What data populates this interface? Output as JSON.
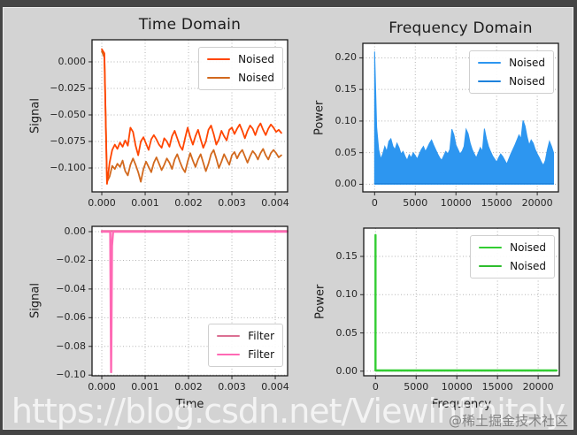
{
  "window": {
    "frame_color": "#454545",
    "figure_background": "#d3d3d3",
    "axes_background": "#ffffff",
    "grid_color": "#b5b5b5"
  },
  "watermark": {
    "url_text": "https://blog.csdn.net/Viewinfinitely",
    "badge_text": "@稀土掘金技术社区"
  },
  "chart_data": [
    {
      "type": "line",
      "title": "Time Domain",
      "xlabel": "",
      "ylabel": "Signal",
      "xlim": [
        -0.000225,
        0.004285
      ],
      "ylim": [
        -0.1225,
        0.0208
      ],
      "grid": true,
      "xticks": {
        "values": [
          0,
          0.001,
          0.002,
          0.003,
          0.004
        ],
        "labels": [
          "0.000",
          "0.001",
          "0.002",
          "0.003",
          "0.004"
        ]
      },
      "yticks": {
        "values": [
          0,
          -0.025,
          -0.05,
          -0.075,
          -0.1
        ],
        "labels": [
          "0.000",
          "−0.025",
          "−0.050",
          "−0.075",
          "−0.100"
        ]
      },
      "legend": {
        "loc": "top-right",
        "items": [
          {
            "label": "Noised",
            "color": "#FF4500"
          },
          {
            "label": "Noised",
            "color": "#D2691E"
          }
        ]
      },
      "series": [
        {
          "name": "Noised",
          "color": "#D2691E",
          "width": 1.8,
          "x0": 0,
          "dx": 6e-05,
          "y": [
            0.01,
            0.004,
            -0.113,
            -0.108,
            -0.098,
            -0.101,
            -0.096,
            -0.099,
            -0.093,
            -0.103,
            -0.107,
            -0.097,
            -0.091,
            -0.097,
            -0.104,
            -0.113,
            -0.101,
            -0.094,
            -0.099,
            -0.104,
            -0.095,
            -0.09,
            -0.096,
            -0.102,
            -0.097,
            -0.091,
            -0.095,
            -0.101,
            -0.092,
            -0.087,
            -0.094,
            -0.1,
            -0.104,
            -0.094,
            -0.086,
            -0.093,
            -0.099,
            -0.092,
            -0.087,
            -0.095,
            -0.103,
            -0.096,
            -0.087,
            -0.083,
            -0.091,
            -0.1,
            -0.094,
            -0.087,
            -0.092,
            -0.097,
            -0.088,
            -0.085,
            -0.091,
            -0.086,
            -0.083,
            -0.089,
            -0.095,
            -0.089,
            -0.084,
            -0.087,
            -0.092,
            -0.086,
            -0.082,
            -0.088,
            -0.092,
            -0.086,
            -0.083,
            -0.086,
            -0.09,
            -0.088
          ]
        },
        {
          "name": "Noised",
          "color": "#FF4500",
          "width": 1.8,
          "x0": 0,
          "dx": 6e-05,
          "y": [
            0.012,
            0.008,
            -0.115,
            -0.095,
            -0.083,
            -0.078,
            -0.082,
            -0.076,
            -0.08,
            -0.074,
            -0.079,
            -0.062,
            -0.066,
            -0.079,
            -0.088,
            -0.075,
            -0.071,
            -0.077,
            -0.083,
            -0.073,
            -0.069,
            -0.073,
            -0.078,
            -0.081,
            -0.072,
            -0.075,
            -0.08,
            -0.07,
            -0.065,
            -0.072,
            -0.079,
            -0.083,
            -0.072,
            -0.062,
            -0.071,
            -0.078,
            -0.07,
            -0.064,
            -0.073,
            -0.081,
            -0.075,
            -0.064,
            -0.06,
            -0.068,
            -0.078,
            -0.073,
            -0.065,
            -0.07,
            -0.074,
            -0.064,
            -0.062,
            -0.068,
            -0.063,
            -0.059,
            -0.065,
            -0.072,
            -0.065,
            -0.06,
            -0.063,
            -0.069,
            -0.062,
            -0.058,
            -0.064,
            -0.069,
            -0.063,
            -0.059,
            -0.062,
            -0.066,
            -0.064,
            -0.067
          ]
        }
      ]
    },
    {
      "type": "area",
      "title": "Frequency Domain",
      "xlabel": "",
      "ylabel": "Power",
      "xlim": [
        -1450,
        22600
      ],
      "ylim": [
        -0.012,
        0.223
      ],
      "grid": true,
      "xticks": {
        "values": [
          0,
          5000,
          10000,
          15000,
          20000
        ],
        "labels": [
          "0",
          "5000",
          "10000",
          "15000",
          "20000"
        ]
      },
      "yticks": {
        "values": [
          0,
          0.05,
          0.1,
          0.15,
          0.2
        ],
        "labels": [
          "0.00",
          "0.05",
          "0.10",
          "0.15",
          "0.20"
        ]
      },
      "legend": {
        "loc": "top-right",
        "items": [
          {
            "label": "Noised",
            "color": "#2D96F0"
          },
          {
            "label": "Noised",
            "color": "#1E82DC"
          }
        ]
      },
      "series": [
        {
          "name": "Noised",
          "color": "#2D96F0",
          "width": 1,
          "fill": true,
          "x0": 0,
          "dx": 250,
          "y": [
            0.21,
            0.09,
            0.055,
            0.04,
            0.048,
            0.06,
            0.052,
            0.068,
            0.072,
            0.06,
            0.055,
            0.065,
            0.058,
            0.048,
            0.052,
            0.044,
            0.038,
            0.047,
            0.042,
            0.05,
            0.045,
            0.04,
            0.048,
            0.055,
            0.06,
            0.052,
            0.058,
            0.065,
            0.07,
            0.062,
            0.055,
            0.048,
            0.042,
            0.038,
            0.045,
            0.052,
            0.048,
            0.055,
            0.087,
            0.078,
            0.062,
            0.055,
            0.048,
            0.052,
            0.06,
            0.087,
            0.08,
            0.065,
            0.055,
            0.048,
            0.042,
            0.05,
            0.058,
            0.052,
            0.088,
            0.072,
            0.06,
            0.052,
            0.045,
            0.04,
            0.035,
            0.042,
            0.048,
            0.044,
            0.038,
            0.032,
            0.04,
            0.048,
            0.055,
            0.062,
            0.07,
            0.078,
            0.072,
            0.101,
            0.092,
            0.075,
            0.062,
            0.07,
            0.065,
            0.055,
            0.048,
            0.042,
            0.035,
            0.03,
            0.038,
            0.055,
            0.068,
            0.06,
            0.05
          ]
        },
        {
          "name": "Noised",
          "color": "#1E82DC",
          "width": 1.2,
          "x": [
            0,
            22000
          ],
          "y": [
            0.0012,
            0.0012
          ]
        }
      ]
    },
    {
      "type": "line",
      "title": "",
      "xlabel": "Time",
      "ylabel": "Signal",
      "xlim": [
        -0.000225,
        0.004285
      ],
      "ylim": [
        -0.1005,
        0.0037
      ],
      "grid": true,
      "xticks": {
        "values": [
          0,
          0.001,
          0.002,
          0.003,
          0.004
        ],
        "labels": [
          "0.000",
          "0.001",
          "0.002",
          "0.003",
          "0.004"
        ]
      },
      "yticks": {
        "values": [
          0,
          -0.02,
          -0.04,
          -0.06,
          -0.08,
          -0.1
        ],
        "labels": [
          "0.00",
          "−0.02",
          "−0.04",
          "−0.06",
          "−0.08",
          "−0.10"
        ]
      },
      "legend": {
        "loc": "bottom-right",
        "items": [
          {
            "label": "Filter",
            "color": "#DB7093"
          },
          {
            "label": "Filter",
            "color": "#FF69B4"
          }
        ]
      },
      "series": [
        {
          "name": "Filter",
          "color": "#DB7093",
          "width": 2.2,
          "x": [
            0,
            0.00428
          ],
          "y": [
            0.0004,
            0.0004
          ]
        },
        {
          "name": "Filter",
          "color": "#FF69B4",
          "width": 2.4,
          "x": [
            0,
            0.000195,
            0.000215,
            0.000235,
            0.00026,
            0.00428
          ],
          "y": [
            0,
            0,
            -0.098,
            -0.01,
            0,
            0
          ]
        }
      ]
    },
    {
      "type": "line",
      "title": "",
      "xlabel": "Frequency",
      "ylabel": "Power",
      "xlim": [
        -1450,
        22600
      ],
      "ylim": [
        -0.006,
        0.187
      ],
      "grid": true,
      "xticks": {
        "values": [
          0,
          5000,
          10000,
          15000,
          20000
        ],
        "labels": [
          "0",
          "5000",
          "10000",
          "15000",
          "20000"
        ]
      },
      "yticks": {
        "values": [
          0,
          0.05,
          0.1,
          0.15
        ],
        "labels": [
          "0.00",
          "0.05",
          "0.10",
          "0.15"
        ]
      },
      "legend": {
        "loc": "top-right",
        "items": [
          {
            "label": "Noised",
            "color": "#32CD32"
          },
          {
            "label": "Noised",
            "color": "#2EBD2E"
          }
        ]
      },
      "series": [
        {
          "name": "Noised",
          "color": "#2EBD2E",
          "width": 2.2,
          "x": [
            0,
            22250
          ],
          "y": [
            0.0008,
            0.0008
          ]
        },
        {
          "name": "Noised",
          "color": "#32CD32",
          "width": 2.4,
          "x": [
            0,
            0,
            22250
          ],
          "y": [
            0.178,
            0.001,
            0.001
          ]
        }
      ]
    }
  ]
}
